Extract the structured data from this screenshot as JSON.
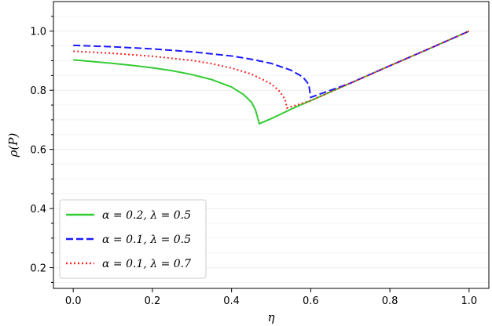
{
  "chart_data": {
    "type": "line",
    "title": "",
    "xlabel": "η",
    "ylabel": "ρ(P)",
    "xlim": [
      -0.05,
      1.05
    ],
    "ylim": [
      0.13,
      1.1
    ],
    "xticks": [
      0.0,
      0.2,
      0.4,
      0.6,
      0.8,
      1.0
    ],
    "xtick_labels": [
      "0.0",
      "0.2",
      "0.4",
      "0.6",
      "0.8",
      "1.0"
    ],
    "yticks": [
      0.2,
      0.4,
      0.6,
      0.8,
      1.0
    ],
    "ytick_labels": [
      "0.2",
      "0.4",
      "0.6",
      "0.8",
      "1.0"
    ],
    "grid": true,
    "legend_position": "lower-left",
    "series": [
      {
        "name": "α = 0.2, λ = 0.5",
        "color": "#33cc33",
        "style": "solid",
        "x": [
          0.0,
          0.05,
          0.1,
          0.15,
          0.2,
          0.25,
          0.3,
          0.35,
          0.4,
          0.43,
          0.45,
          0.46,
          0.465,
          0.47,
          0.5,
          0.53,
          0.56,
          0.6,
          0.7,
          0.8,
          0.9,
          1.0
        ],
        "y": [
          0.903,
          0.897,
          0.891,
          0.884,
          0.876,
          0.866,
          0.853,
          0.836,
          0.811,
          0.786,
          0.76,
          0.735,
          0.712,
          0.687,
          0.704,
          0.723,
          0.742,
          0.765,
          0.824,
          0.883,
          0.941,
          1.0
        ]
      },
      {
        "name": "α = 0.1, λ = 0.5",
        "color": "#1a1aff",
        "style": "dashed",
        "x": [
          0.0,
          0.1,
          0.2,
          0.3,
          0.4,
          0.45,
          0.5,
          0.55,
          0.58,
          0.595,
          0.6,
          0.7,
          0.8,
          0.9,
          1.0
        ],
        "y": [
          0.952,
          0.947,
          0.94,
          0.93,
          0.916,
          0.905,
          0.891,
          0.868,
          0.845,
          0.82,
          0.776,
          0.824,
          0.883,
          0.941,
          1.0
        ]
      },
      {
        "name": "α = 0.1, λ = 0.7",
        "color": "#ff2222",
        "style": "dotted",
        "x": [
          0.0,
          0.1,
          0.2,
          0.3,
          0.35,
          0.4,
          0.45,
          0.5,
          0.52,
          0.535,
          0.54,
          0.6,
          0.7,
          0.8,
          0.9,
          1.0
        ],
        "y": [
          0.932,
          0.925,
          0.915,
          0.901,
          0.89,
          0.875,
          0.855,
          0.822,
          0.798,
          0.77,
          0.74,
          0.765,
          0.824,
          0.883,
          0.941,
          1.0
        ]
      }
    ]
  }
}
